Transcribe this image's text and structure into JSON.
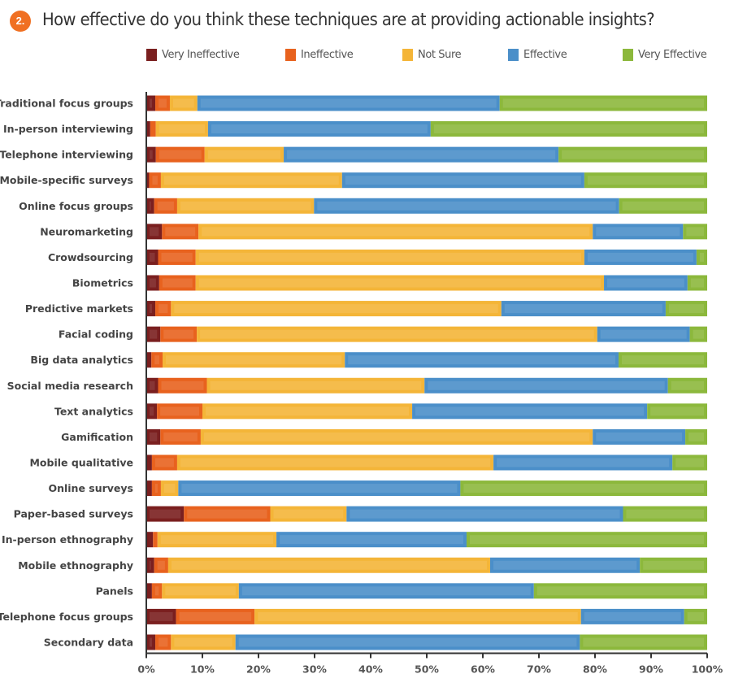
{
  "question_number": "2.",
  "chart_data": {
    "type": "bar",
    "orientation": "horizontal",
    "stacked": true,
    "title": "How effective do you think these techniques are at providing actionable insights?",
    "xlabel": "",
    "ylabel": "",
    "xlim": [
      0,
      100
    ],
    "x_ticks": [
      "0%",
      "10%",
      "20%",
      "30%",
      "40%",
      "50%",
      "60%",
      "70%",
      "80%",
      "90%",
      "100%"
    ],
    "grid": false,
    "legend_position": "top",
    "categories": [
      "Traditional focus groups",
      "In-person interviewing",
      "Telephone interviewing",
      "Mobile-specific surveys",
      "Online focus groups",
      "Neuromarketing",
      "Crowdsourcing",
      "Biometrics",
      "Predictive markets",
      "Facial coding",
      "Big data analytics",
      "Social media research",
      "Text analytics",
      "Gamification",
      "Mobile qualitative",
      "Online surveys",
      "Paper-based surveys",
      "In-person ethnography",
      "Mobile ethnography",
      "Panels",
      "Telephone focus groups",
      "Secondary data"
    ],
    "series": [
      {
        "name": "Very Ineffective",
        "color": "#7a1f1f",
        "values": [
          1.6,
          0.7,
          1.7,
          0.5,
          1.4,
          2.8,
          2.1,
          2.3,
          1.6,
          2.5,
          0.9,
          2.1,
          1.9,
          2.5,
          1.0,
          1.0,
          6.7,
          1.2,
          1.4,
          1.0,
          5.3,
          1.6
        ]
      },
      {
        "name": "Ineffective",
        "color": "#e8621e",
        "values": [
          2.6,
          1.0,
          8.7,
          2.1,
          4.1,
          6.5,
          6.7,
          6.5,
          2.8,
          6.5,
          2.0,
          8.7,
          8.1,
          7.2,
          4.5,
          1.6,
          15.4,
          0.8,
          2.5,
          1.8,
          14.0,
          2.8
        ]
      },
      {
        "name": "Not Sure",
        "color": "#f4b538",
        "values": [
          4.9,
          9.3,
          14.1,
          32.3,
          24.4,
          70.3,
          69.3,
          72.8,
          58.9,
          71.4,
          32.5,
          38.8,
          37.4,
          69.9,
          56.4,
          3.1,
          13.6,
          21.2,
          57.4,
          13.7,
          58.2,
          11.5
        ]
      },
      {
        "name": "Effective",
        "color": "#4b8fc9",
        "values": [
          53.9,
          39.7,
          49.0,
          43.2,
          54.4,
          16.1,
          20.0,
          14.9,
          29.3,
          16.5,
          48.8,
          43.4,
          41.9,
          16.5,
          31.9,
          50.3,
          49.3,
          33.9,
          26.7,
          52.6,
          18.4,
          61.4
        ]
      },
      {
        "name": "Very Effective",
        "color": "#8cb83c",
        "values": [
          37.0,
          49.3,
          26.5,
          21.9,
          15.7,
          4.3,
          1.9,
          3.5,
          7.4,
          3.1,
          15.8,
          7.0,
          10.7,
          3.9,
          6.2,
          44.0,
          15.0,
          42.9,
          12.0,
          30.9,
          4.1,
          22.7
        ]
      }
    ]
  }
}
